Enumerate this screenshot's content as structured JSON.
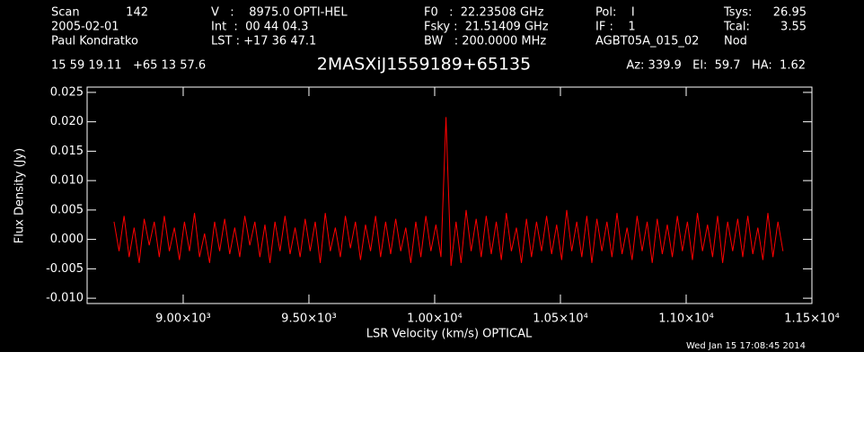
{
  "header": {
    "scan_label": "Scan",
    "scan": "142",
    "date": "2005-02-01",
    "observer": "Paul Kondratko",
    "velocity": "V   :    8975.0 OPTI-HEL",
    "integration": "Int  :  00 44 04.3",
    "lst": "LST : +17 36 47.1",
    "rest_freq": "F0   :  22.23508 GHz",
    "sky_freq": "Fsky :  21.51409 GHz",
    "bandwidth": "BW   : 200.0000 MHz",
    "pol": "Pol:    I",
    "if": "IF :    1",
    "project": "AGBT05A_015_02",
    "tsys_label": "Tsys:",
    "tsys": "26.95",
    "tcal_label": "Tcal:",
    "tcal": "3.55",
    "proc": "Nod",
    "coords": "15 59 19.11   +65 13 57.6",
    "pointing": "Az: 339.9   El:  59.7   HA:  1.62",
    "timestamp": "Wed Jan 15 17:08:45 2014"
  },
  "chart_data": {
    "type": "line",
    "title": "2MASXiJ1559189+65135",
    "x_label": "LSR Velocity (km/s) OPTICAL",
    "y_label": "Flux Density (Jy)",
    "xlim": [
      8618,
      11500
    ],
    "ylim": [
      -0.0109,
      0.0259
    ],
    "xticks": [
      {
        "value": 9000,
        "label": "9.00×10³"
      },
      {
        "value": 9500,
        "label": "9.50×10³"
      },
      {
        "value": 10000,
        "label": "1.00×10⁴"
      },
      {
        "value": 10500,
        "label": "1.05×10⁴"
      },
      {
        "value": 11000,
        "label": "1.10×10⁴"
      },
      {
        "value": 11500,
        "label": "1.15×10⁴"
      }
    ],
    "yticks": [
      {
        "value": -0.01,
        "label": "-0.010"
      },
      -0.005,
      {
        "value": 0,
        "label": "0.000"
      },
      0.005,
      {
        "value": 0.01,
        "label": "0.010"
      },
      0.015,
      {
        "value": 0.02,
        "label": "0.020"
      },
      0.025
    ],
    "x": [
      8725,
      8745,
      8765,
      8785,
      8805,
      8825,
      8845,
      8865,
      8885,
      8905,
      8925,
      8945,
      8965,
      8985,
      9005,
      9025,
      9045,
      9065,
      9085,
      9105,
      9125,
      9145,
      9165,
      9185,
      9205,
      9225,
      9245,
      9265,
      9285,
      9305,
      9325,
      9345,
      9365,
      9385,
      9405,
      9425,
      9445,
      9465,
      9485,
      9505,
      9525,
      9545,
      9565,
      9585,
      9605,
      9625,
      9645,
      9665,
      9685,
      9705,
      9725,
      9745,
      9765,
      9785,
      9805,
      9825,
      9845,
      9865,
      9885,
      9905,
      9925,
      9945,
      9965,
      9985,
      10005,
      10025,
      10045,
      10065,
      10085,
      10105,
      10125,
      10145,
      10165,
      10185,
      10205,
      10225,
      10245,
      10265,
      10285,
      10305,
      10325,
      10345,
      10365,
      10385,
      10405,
      10425,
      10445,
      10465,
      10485,
      10505,
      10525,
      10545,
      10565,
      10585,
      10605,
      10625,
      10645,
      10665,
      10685,
      10705,
      10725,
      10745,
      10765,
      10785,
      10805,
      10825,
      10845,
      10865,
      10885,
      10905,
      10925,
      10945,
      10965,
      10985,
      11005,
      11025,
      11045,
      11065,
      11085,
      11105,
      11125,
      11145,
      11165,
      11185,
      11205,
      11225,
      11245,
      11265,
      11285,
      11305,
      11325,
      11345,
      11365,
      11385
    ],
    "series": [
      {
        "name": "spectrum",
        "color": "#ff0000",
        "values": [
          0.003,
          -0.002,
          0.004,
          -0.003,
          0.002,
          -0.004,
          0.0035,
          -0.001,
          0.003,
          -0.003,
          0.004,
          -0.002,
          0.002,
          -0.0035,
          0.003,
          -0.002,
          0.0045,
          -0.003,
          0.001,
          -0.004,
          0.003,
          -0.002,
          0.0035,
          -0.0025,
          0.002,
          -0.003,
          0.004,
          -0.001,
          0.003,
          -0.003,
          0.0025,
          -0.004,
          0.003,
          -0.002,
          0.004,
          -0.0025,
          0.002,
          -0.003,
          0.0035,
          -0.002,
          0.003,
          -0.004,
          0.0045,
          -0.002,
          0.002,
          -0.003,
          0.004,
          -0.0015,
          0.003,
          -0.0035,
          0.0025,
          -0.002,
          0.004,
          -0.003,
          0.003,
          -0.0025,
          0.0035,
          -0.002,
          0.002,
          -0.004,
          0.003,
          -0.003,
          0.004,
          -0.002,
          0.0025,
          -0.003,
          0.0208,
          -0.0045,
          0.003,
          -0.004,
          0.005,
          -0.002,
          0.0035,
          -0.003,
          0.004,
          -0.0025,
          0.003,
          -0.0035,
          0.0045,
          -0.002,
          0.002,
          -0.004,
          0.0035,
          -0.003,
          0.003,
          -0.002,
          0.004,
          -0.0025,
          0.0025,
          -0.0035,
          0.005,
          -0.002,
          0.003,
          -0.003,
          0.004,
          -0.004,
          0.0035,
          -0.002,
          0.003,
          -0.003,
          0.0045,
          -0.0025,
          0.002,
          -0.0035,
          0.004,
          -0.002,
          0.003,
          -0.004,
          0.0035,
          -0.0025,
          0.0025,
          -0.003,
          0.004,
          -0.002,
          0.003,
          -0.0035,
          0.0045,
          -0.002,
          0.0025,
          -0.003,
          0.004,
          -0.004,
          0.003,
          -0.002,
          0.0035,
          -0.003,
          0.004,
          -0.0025,
          0.002,
          -0.0035,
          0.0045,
          -0.003,
          0.003,
          -0.002
        ]
      }
    ]
  }
}
